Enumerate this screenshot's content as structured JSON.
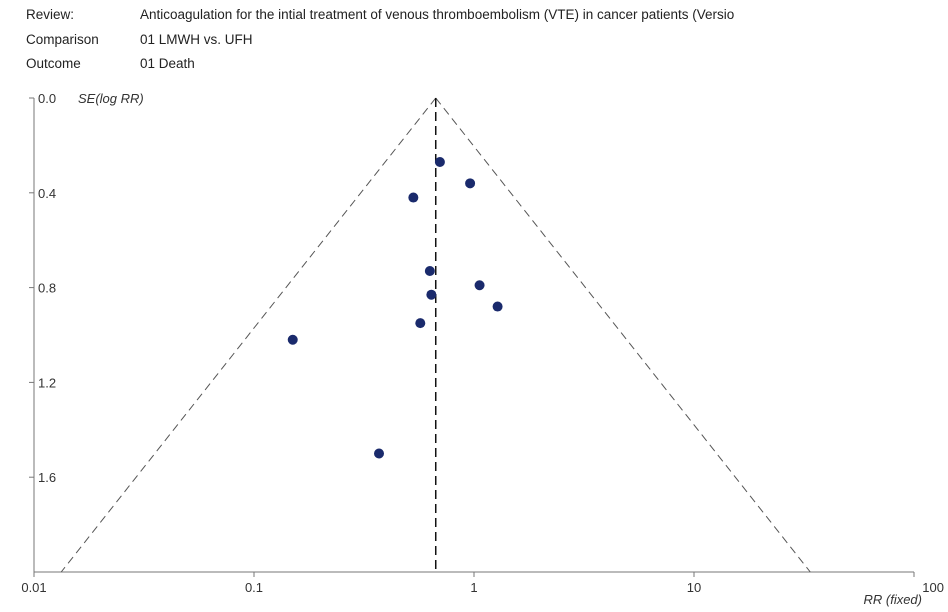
{
  "header": {
    "review_label": "Review:",
    "review_value": "Anticoagulation for the intial treatment of venous thromboembolism (VTE) in cancer patients (Versio",
    "comparison_label": "Comparison",
    "comparison_value": "01 LMWH vs. UFH",
    "outcome_label": "Outcome",
    "outcome_value": "01 Death"
  },
  "chart_data": {
    "type": "scatter",
    "subtype": "funnel plot",
    "xlabel": "RR (fixed)",
    "ylabel": "SE(log RR)",
    "x_scale": "log",
    "xlim": [
      0.01,
      100
    ],
    "ylim": [
      0.0,
      2.0
    ],
    "y_inverted": true,
    "x_ticks": [
      "0.01",
      "0.1",
      "1",
      "10",
      "100"
    ],
    "y_ticks": [
      "0.0",
      "0.4",
      "0.8",
      "1.2",
      "1.6"
    ],
    "pooled_estimate": 0.67,
    "funnel": "dashed pseudo 95% confidence limits",
    "points": [
      {
        "x": 0.7,
        "y": 0.27
      },
      {
        "x": 0.96,
        "y": 0.36
      },
      {
        "x": 0.53,
        "y": 0.42
      },
      {
        "x": 0.63,
        "y": 0.73
      },
      {
        "x": 1.06,
        "y": 0.79
      },
      {
        "x": 0.64,
        "y": 0.83
      },
      {
        "x": 1.28,
        "y": 0.88
      },
      {
        "x": 0.57,
        "y": 0.95
      },
      {
        "x": 0.15,
        "y": 1.02
      },
      {
        "x": 0.37,
        "y": 1.5
      }
    ],
    "colors": {
      "points": "#1a2a6c",
      "lines": "#555555",
      "axis": "#777777"
    }
  }
}
